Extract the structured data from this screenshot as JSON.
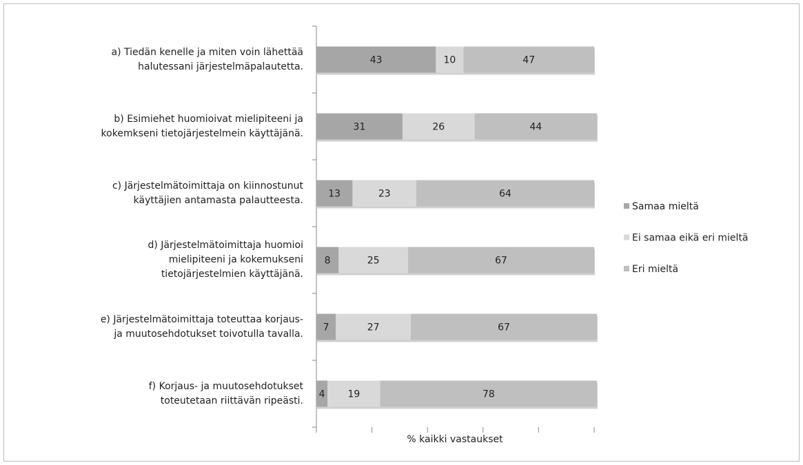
{
  "chart_data": {
    "type": "stacked-bar-horizontal",
    "categories": [
      "a) Tiedän kenelle ja miten voin lähettää\nhalutessani järjestelmäpalautetta.",
      "b) Esimiehet huomioivat mielipiteeni ja\nkokemkseni tietojärjestelmein käyttäjänä.",
      "c) Järjestelmätoimittaja on kiinnostunut\nkäyttäjien antamasta palautteesta.",
      "d) Järjestelmätoimittaja huomioi\nmielipiteeni ja kokemukseni\ntietojärjestelmien käyttäjänä.",
      "e) Järjestelmätoimittaja toteuttaa korjaus-\nja muutosehdotukset toivotulla tavalla.",
      "f) Korjaus- ja muutosehdotukset\ntoteutetaan riittävän ripeästi."
    ],
    "series": [
      {
        "name": "Samaa mieltä",
        "color": "#a6a6a6",
        "values": [
          43,
          31,
          13,
          8,
          7,
          4
        ]
      },
      {
        "name": "Ei samaa eikä eri mieltä",
        "color": "#d9d9d9",
        "values": [
          10,
          26,
          23,
          25,
          27,
          19
        ]
      },
      {
        "name": "Eri mieltä",
        "color": "#bfbfbf",
        "values": [
          47,
          44,
          64,
          67,
          67,
          78
        ]
      }
    ],
    "x_label": "% kaikki vastaukset",
    "xlim": [
      0,
      100
    ],
    "xticks": [
      0,
      20,
      40,
      60,
      80,
      100
    ],
    "legend": "right"
  }
}
